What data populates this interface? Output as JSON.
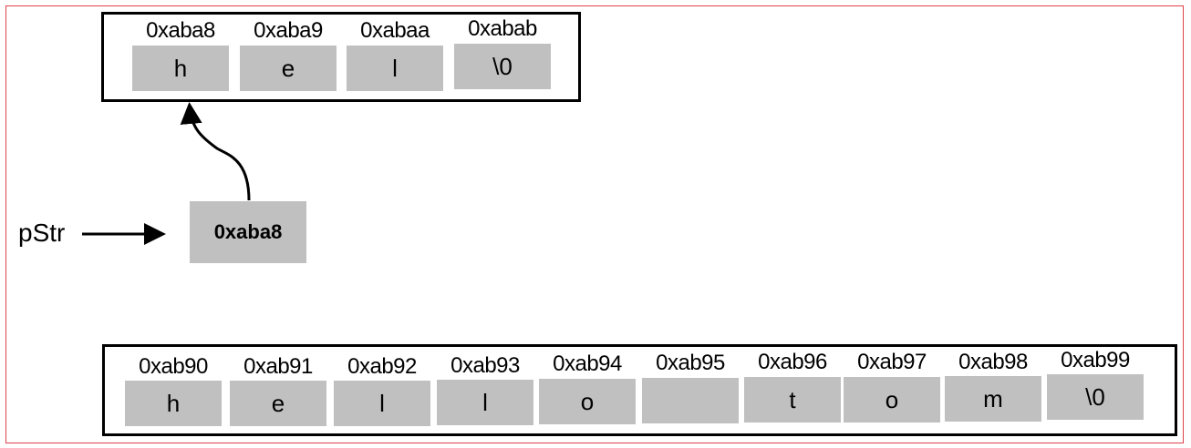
{
  "top_array": {
    "cells": [
      {
        "address": "0xaba8",
        "value": "h"
      },
      {
        "address": "0xaba9",
        "value": "e"
      },
      {
        "address": "0xabaa",
        "value": "l"
      },
      {
        "address": "0xabab",
        "value": "\\0"
      }
    ]
  },
  "pointer": {
    "name": "pStr",
    "value": "0xaba8"
  },
  "bottom_array": {
    "cells": [
      {
        "address": "0xab90",
        "value": "h"
      },
      {
        "address": "0xab91",
        "value": "e"
      },
      {
        "address": "0xab92",
        "value": "l"
      },
      {
        "address": "0xab93",
        "value": "l"
      },
      {
        "address": "0xab94",
        "value": "o"
      },
      {
        "address": "0xab95",
        "value": ""
      },
      {
        "address": "0xab96",
        "value": "t"
      },
      {
        "address": "0xab97",
        "value": "o"
      },
      {
        "address": "0xab98",
        "value": "m"
      },
      {
        "address": "0xab99",
        "value": "\\0"
      }
    ]
  },
  "colors": {
    "cell": "#c0c0c0",
    "frame": "#e0404a",
    "border": "#000000"
  }
}
